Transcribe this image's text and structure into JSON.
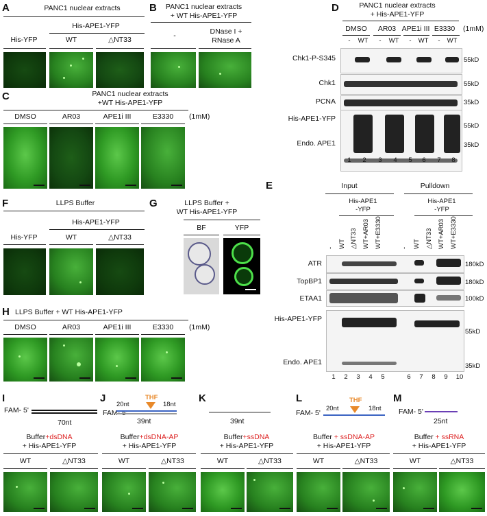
{
  "A": {
    "label": "A",
    "title": "PANC1 nuclear extracts",
    "header": "His-APE1-YFP",
    "cols": [
      "His-YFP",
      "WT",
      "△NT33"
    ]
  },
  "B": {
    "label": "B",
    "title1": "PANC1 nuclear extracts",
    "title2": "+ WT His-APE1-YFP",
    "cols": [
      "-",
      "DNase I +",
      "RNase A"
    ]
  },
  "C": {
    "label": "C",
    "title1": "PANC1 nuclear extracts",
    "title2": "+WT His-APE1-YFP",
    "cols": [
      "DMSO",
      "AR03",
      "APE1i III",
      "E3330"
    ],
    "conc": "(1mM)"
  },
  "D": {
    "label": "D",
    "title1": "PANC1 nuclear extracts",
    "title2": "+ His-APE1-YFP",
    "groups": [
      "DMSO",
      "AR03",
      "APE1i III",
      "E3330"
    ],
    "conc": "(1mM)",
    "signs": [
      "-",
      "WT",
      "-",
      "WT",
      "-",
      "WT",
      "-",
      "WT"
    ],
    "rows": [
      "Chk1-P-S345",
      "Chk1",
      "PCNA",
      "His-APE1-YFP",
      "Endo. APE1"
    ],
    "mw": [
      "55kD",
      "55kD",
      "35kD",
      "55kD",
      "35kD"
    ],
    "lanes": [
      "1",
      "2",
      "3",
      "4",
      "5",
      "6",
      "7",
      "8"
    ]
  },
  "E": {
    "label": "E",
    "input": "Input",
    "pulldown": "Pulldown",
    "sub1": "His-APE1",
    "sub2": "-YFP",
    "cols": [
      "-",
      "WT",
      "△NT33",
      "WT+AR03",
      "WT+E3330",
      "-",
      "WT",
      "△NT33",
      "WT+AR03",
      "WT+E3330"
    ],
    "rows": [
      "ATR",
      "TopBP1",
      "ETAA1",
      "His-APE1-YFP",
      "Endo. APE1"
    ],
    "mw": [
      "180kD",
      "180kD",
      "100kD",
      "55kD",
      "35kD"
    ],
    "lanes": [
      "1",
      "2",
      "3",
      "4",
      "5",
      "6",
      "7",
      "8",
      "9",
      "10"
    ]
  },
  "F": {
    "label": "F",
    "title": "LLPS Buffer",
    "header": "His-APE1-YFP",
    "cols": [
      "His-YFP",
      "WT",
      "△NT33"
    ]
  },
  "G": {
    "label": "G",
    "title1": "LLPS Buffer +",
    "title2": "WT His-APE1-YFP",
    "cols": [
      "BF",
      "YFP"
    ]
  },
  "H": {
    "label": "H",
    "title": "LLPS Buffer + WT His-APE1-YFP",
    "cols": [
      "DMSO",
      "AR03",
      "APE1i III",
      "E3330"
    ],
    "conc": "(1mM)"
  },
  "I": {
    "label": "I",
    "fam": "FAM- 5'",
    "len": "70nt",
    "cond_red": "+dsDNA",
    "cond_pre": "Buffer",
    "cond2": "+ His-APE1-YFP",
    "cols": [
      "WT",
      "△NT33"
    ]
  },
  "J": {
    "label": "J",
    "fam": "FAM- 5'",
    "left": "20nt",
    "thf": "THF",
    "right": "18nt",
    "len": "39nt",
    "cond_pre": "Buffer",
    "cond_red": "+dsDNA-AP",
    "cond2": "+ His-APE1-YFP",
    "cols": [
      "WT",
      "△NT33"
    ]
  },
  "K": {
    "label": "K",
    "len": "39nt",
    "cond_pre": "Buffer",
    "cond_red": "+ssDNA",
    "cond2": "+ His-APE1-YFP",
    "cols": [
      "WT",
      "△NT33"
    ]
  },
  "L": {
    "label": "L",
    "fam": "FAM- 5'",
    "left": "20nt",
    "thf": "THF",
    "right": "18nt",
    "cond_pre": "Buffer ",
    "cond_red": "+ ssDNA-AP",
    "cond2": "+ His-APE1-YFP",
    "cols": [
      "WT",
      "△NT33"
    ]
  },
  "M": {
    "label": "M",
    "fam": "FAM- 5'",
    "len": "25nt",
    "cond_pre": "Buffer ",
    "cond_red": "+ ssRNA",
    "cond2": "+ His-APE1-YFP",
    "cols": [
      "WT",
      "△NT33"
    ]
  },
  "colors": {
    "red": "#dd2222",
    "thf": "#e8892a",
    "ssDNA": "#999999",
    "rna": "#6a3fb5"
  }
}
